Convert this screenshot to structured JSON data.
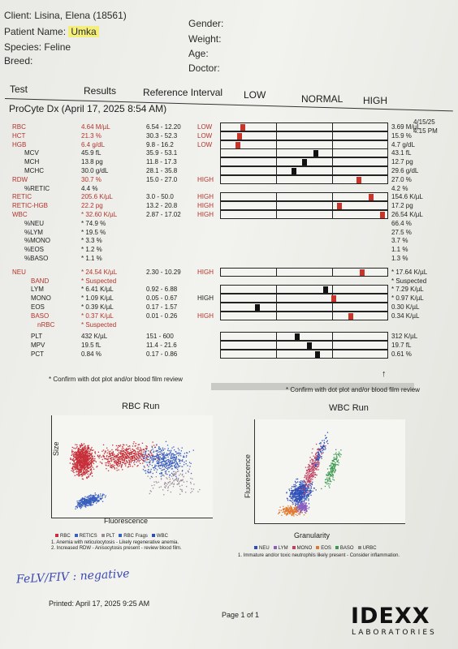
{
  "header": {
    "client_label": "Client:",
    "client_value": "Lisina, Elena (18561)",
    "patient_label": "Patient Name:",
    "patient_value": "Umka",
    "species_label": "Species:",
    "species_value": "Feline",
    "breed_label": "Breed:",
    "gender_label": "Gender:",
    "weight_label": "Weight:",
    "age_label": "Age:",
    "doctor_label": "Doctor:"
  },
  "table_header": {
    "test": "Test",
    "results": "Results",
    "reference": "Reference Interval",
    "low": "LOW",
    "normal": "NORMAL",
    "high": "HIGH"
  },
  "run_title": "ProCyte Dx (April 17, 2025 8:54 AM)",
  "prev_date": "4/15/25",
  "prev_time": "4:15 PM",
  "rows": [
    {
      "name": "RBC",
      "result": "4.64 M/µL",
      "ref": "6.54 - 12.20",
      "flag": "LOW",
      "red": true,
      "prev": "3.69 M/µL",
      "pos": 0.13,
      "mcolor": "#c9342a",
      "bar": true
    },
    {
      "name": "HCT",
      "result": "21.3 %",
      "ref": "30.3 - 52.3",
      "flag": "LOW",
      "red": true,
      "prev": "15.9 %",
      "pos": 0.11,
      "mcolor": "#c9342a",
      "bar": true
    },
    {
      "name": "HGB",
      "result": "6.4 g/dL",
      "ref": "9.8 - 16.2",
      "flag": "LOW",
      "red": true,
      "prev": "4.7 g/dL",
      "pos": 0.1,
      "mcolor": "#c9342a",
      "bar": true
    },
    {
      "name": "MCV",
      "result": "45.9 fL",
      "ref": "35.9 - 53.1",
      "flag": "",
      "red": false,
      "prev": "43.1 fL",
      "pos": 0.57,
      "mcolor": "#111111",
      "bar": true
    },
    {
      "name": "MCH",
      "result": "13.8 pg",
      "ref": "11.8 - 17.3",
      "flag": "",
      "red": false,
      "prev": "12.7 pg",
      "pos": 0.5,
      "mcolor": "#111111",
      "bar": true
    },
    {
      "name": "MCHC",
      "result": "30.0 g/dL",
      "ref": "28.1 - 35.8",
      "flag": "",
      "red": false,
      "prev": "29.6 g/dL",
      "pos": 0.44,
      "mcolor": "#111111",
      "bar": true
    },
    {
      "name": "RDW",
      "result": "30.7 %",
      "ref": "15.0 - 27.0",
      "flag": "HIGH",
      "red": true,
      "prev": "27.0 %",
      "pos": 0.83,
      "mcolor": "#c9342a",
      "bar": true
    },
    {
      "name": "%RETIC",
      "result": "4.4 %",
      "ref": "",
      "flag": "",
      "red": false,
      "prev": "4.2 %",
      "pos": null,
      "mcolor": "",
      "bar": false
    },
    {
      "name": "RETIC",
      "result": "205.6 K/µL",
      "ref": "3.0 - 50.0",
      "flag": "HIGH",
      "red": true,
      "prev": "154.6 K/µL",
      "pos": 0.9,
      "mcolor": "#c9342a",
      "bar": true
    },
    {
      "name": "RETIC-HGB",
      "result": "22.2 pg",
      "ref": "13.2 - 20.8",
      "flag": "HIGH",
      "red": true,
      "prev": "17.2 pg",
      "pos": 0.71,
      "mcolor": "#c9342a",
      "bar": true
    },
    {
      "name": "WBC",
      "result": "* 32.60 K/µL",
      "ref": "2.87 - 17.02",
      "flag": "HIGH",
      "red": true,
      "prev": "26.54 K/µL",
      "pos": 0.97,
      "mcolor": "#c9342a",
      "bar": true
    },
    {
      "name": "%NEU",
      "result": "* 74.9 %",
      "ref": "",
      "flag": "",
      "red": false,
      "prev": "66.4 %",
      "pos": null,
      "mcolor": "",
      "bar": false
    },
    {
      "name": "%LYM",
      "result": "* 19.5 %",
      "ref": "",
      "flag": "",
      "red": false,
      "prev": "27.5 %",
      "pos": null,
      "mcolor": "",
      "bar": false
    },
    {
      "name": "%MONO",
      "result": "* 3.3 %",
      "ref": "",
      "flag": "",
      "red": false,
      "prev": "3.7 %",
      "pos": null,
      "mcolor": "",
      "bar": false
    },
    {
      "name": "%EOS",
      "result": "* 1.2 %",
      "ref": "",
      "flag": "",
      "red": false,
      "prev": "1.1 %",
      "pos": null,
      "mcolor": "",
      "bar": false
    },
    {
      "name": "%BASO",
      "result": "* 1.1 %",
      "ref": "",
      "flag": "",
      "red": false,
      "prev": "1.3 %",
      "pos": null,
      "mcolor": "",
      "bar": false
    },
    {
      "name": "NEU",
      "result": "* 24.54 K/µL",
      "ref": "2.30 - 10.29",
      "flag": "HIGH",
      "red": true,
      "prev": "* 17.64 K/µL",
      "pos": 0.85,
      "mcolor": "#c9342a",
      "bar": true
    },
    {
      "name": "BAND",
      "result": "* Suspected",
      "ref": "",
      "flag": "",
      "red": true,
      "prev": "* Suspected",
      "pos": null,
      "mcolor": "",
      "bar": false
    },
    {
      "name": "LYM",
      "result": "* 6.41 K/µL",
      "ref": "0.92 - 6.88",
      "flag": "",
      "red": false,
      "prev": "* 7.29 K/µL",
      "pos": 0.63,
      "mcolor": "#111111",
      "bar": true
    },
    {
      "name": "MONO",
      "result": "* 1.09 K/µL",
      "ref": "0.05 - 0.67",
      "flag": "HIGH",
      "red": false,
      "prev": "* 0.97 K/µL",
      "pos": 0.68,
      "mcolor": "#c9342a",
      "bar": true
    },
    {
      "name": "EOS",
      "result": "* 0.39 K/µL",
      "ref": "0.17 - 1.57",
      "flag": "",
      "red": false,
      "prev": "0.30 K/µL",
      "pos": 0.22,
      "mcolor": "#111111",
      "bar": true
    },
    {
      "name": "BASO",
      "result": "* 0.37 K/µL",
      "ref": "0.01 - 0.26",
      "flag": "HIGH",
      "red": true,
      "prev": "0.34 K/µL",
      "pos": 0.78,
      "mcolor": "#c9342a",
      "bar": true
    },
    {
      "name": "nRBC",
      "result": "* Suspected",
      "ref": "",
      "flag": "",
      "red": true,
      "prev": "",
      "pos": null,
      "mcolor": "",
      "bar": false
    },
    {
      "name": "PLT",
      "result": "432 K/µL",
      "ref": "151 - 600",
      "flag": "",
      "red": false,
      "prev": "312 K/µL",
      "pos": 0.46,
      "mcolor": "#111111",
      "bar": true
    },
    {
      "name": "MPV",
      "result": "19.5 fL",
      "ref": "11.4 - 21.6",
      "flag": "",
      "red": false,
      "prev": "19.7 fL",
      "pos": 0.53,
      "mcolor": "#111111",
      "bar": true
    },
    {
      "name": "PCT",
      "result": "0.84 %",
      "ref": "0.17 - 0.86",
      "flag": "",
      "red": false,
      "prev": "0.61 %",
      "pos": 0.58,
      "mcolor": "#111111",
      "bar": true
    }
  ],
  "confirm_note_left": "* Confirm with dot plot and/or blood film review",
  "confirm_note_right": "* Confirm with dot plot and/or blood film review",
  "rbc_run": {
    "title": "RBC Run",
    "x_label": "Fluorescence",
    "y_label": "Size",
    "legend": [
      "RBC",
      "RETICS",
      "PLT",
      "RBC Frags",
      "WBC"
    ],
    "notes": [
      "1. Anemia with reticulocytosis - Likely regenerative anemia.",
      "2. Increased RDW - Anisocytosis present - review blood film."
    ]
  },
  "wbc_run": {
    "title": "WBC Run",
    "x_label": "Granularity",
    "y_label": "Fluorescence",
    "legend": [
      "NEU",
      "LYM",
      "MONO",
      "EOS",
      "BASO",
      "URBC"
    ],
    "notes": [
      "1. Immature and/or toxic neutrophils likely present - Consider inflammation."
    ]
  },
  "colors": {
    "rbc": "#c7303a",
    "retics": "#3a5fbf",
    "plt": "#9a8a9a",
    "neu": "#2e4fb8",
    "lym": "#8a5fc0",
    "mono": "#c04060",
    "eos": "#e07a30",
    "baso": "#3a9a50",
    "urbc": "#8a8a8a"
  },
  "handwriting": "FeLV/FIV : negative",
  "printed": "Printed: April 17, 2025 9:25 AM",
  "page_num": "Page 1 of 1",
  "logo_main": "IDEXX",
  "logo_sub": "LABORATORIES"
}
